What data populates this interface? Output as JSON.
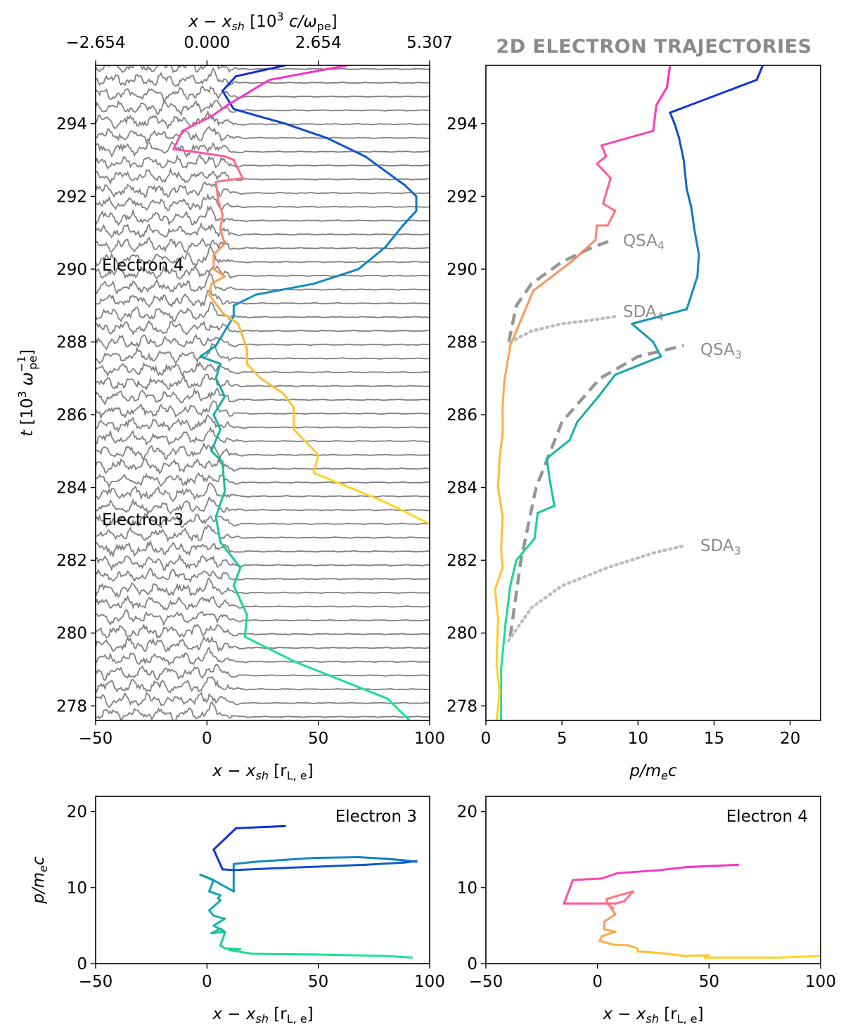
{
  "title": "2D ELECTRON TRAJECTORIES",
  "chart_data": [
    {
      "type": "line",
      "panel": "top-left",
      "xlabel": "x − x_sh [r_L,e]",
      "xlabel_main": "x − x",
      "xlabel_sub": "sh",
      "xlabel_unit_open": "[r",
      "xlabel_unit_sub": "L, e",
      "xlabel_unit_close": "]",
      "ylabel": "t [10^3 ω_pe^-1]",
      "top_xlabel": "x − x_sh [10^3 c/ω_pe]",
      "top_xticks": [
        "−2.654",
        "0.000",
        "2.654",
        "5.307"
      ],
      "top_xtick_values": [
        -50,
        0,
        50,
        100
      ],
      "xlim": [
        -50,
        100
      ],
      "ylim": [
        277.6,
        295.6
      ],
      "xticks": [
        -50,
        0,
        50,
        100
      ],
      "xtick_labels": [
        "−50",
        "0",
        "50",
        "100"
      ],
      "yticks": [
        278,
        280,
        282,
        284,
        286,
        288,
        290,
        292,
        294
      ],
      "annotations": [
        "Electron 4",
        "Electron 3"
      ],
      "background": "stacked field profiles (gray)",
      "series": [
        {
          "points": [
            [
              91,
              277.6
            ],
            [
              81,
              278.2
            ],
            [
              40,
              279.2
            ],
            [
              17,
              279.9
            ],
            [
              18,
              280.5
            ],
            [
              15,
              280.9
            ],
            [
              12,
              281.3
            ],
            [
              15,
              281.8
            ],
            [
              6,
              282.5
            ],
            [
              4,
              283.2
            ],
            [
              8,
              283.9
            ],
            [
              7,
              284.7
            ],
            [
              2,
              285.0
            ],
            [
              6,
              285.6
            ],
            [
              3,
              286.0
            ],
            [
              8,
              286.5
            ],
            [
              4,
              287.0
            ],
            [
              6,
              287.4
            ],
            [
              -3,
              287.6
            ],
            [
              4,
              287.9
            ],
            [
              12,
              288.7
            ],
            [
              12,
              289.0
            ],
            [
              22,
              289.3
            ],
            [
              48,
              289.6
            ],
            [
              68,
              290.0
            ],
            [
              80,
              290.6
            ],
            [
              88,
              291.2
            ],
            [
              94,
              291.6
            ],
            [
              94,
              292.0
            ],
            [
              89,
              292.3
            ],
            [
              71,
              293.1
            ],
            [
              54,
              293.6
            ],
            [
              35,
              294.0
            ],
            [
              12,
              294.4
            ],
            [
              7,
              294.9
            ],
            [
              13,
              295.3
            ],
            [
              35,
              295.6
            ]
          ]
        },
        {
          "points": [
            [
              100,
              283.0
            ],
            [
              80,
              283.6
            ],
            [
              48,
              284.4
            ],
            [
              50,
              284.9
            ],
            [
              39,
              285.6
            ],
            [
              39,
              286.2
            ],
            [
              34,
              286.6
            ],
            [
              24,
              287.0
            ],
            [
              18,
              287.4
            ],
            [
              18,
              287.8
            ],
            [
              14,
              288.5
            ],
            [
              7,
              288.8
            ],
            [
              1,
              289.3
            ],
            [
              2,
              289.6
            ],
            [
              8,
              289.8
            ],
            [
              3,
              290.0
            ],
            [
              3,
              290.4
            ],
            [
              8,
              290.7
            ],
            [
              6,
              291.1
            ],
            [
              7,
              291.5
            ],
            [
              5,
              291.9
            ],
            [
              4,
              292.4
            ],
            [
              16,
              292.5
            ],
            [
              12,
              293.0
            ],
            [
              8,
              293.1
            ],
            [
              -3,
              293.2
            ],
            [
              -15,
              293.3
            ],
            [
              -11,
              293.8
            ],
            [
              2,
              294.2
            ],
            [
              9,
              294.5
            ],
            [
              28,
              295.2
            ],
            [
              63,
              295.6
            ]
          ]
        }
      ]
    },
    {
      "type": "line",
      "panel": "top-right",
      "xlabel": "p/m_e c",
      "xlim": [
        0,
        22
      ],
      "xticks": [
        0,
        5,
        10,
        15,
        20
      ],
      "ylim": [
        277.6,
        295.6
      ],
      "yticks": [
        278,
        280,
        282,
        284,
        286,
        288,
        290,
        292,
        294
      ],
      "annotations": [
        "QSA₄",
        "SDA₄",
        "QSA₃",
        "SDA₃"
      ],
      "annotation_main": [
        "QSA",
        "SDA",
        "QSA",
        "SDA"
      ],
      "annotation_sub": [
        "4",
        "4",
        "3",
        "3"
      ],
      "series": [
        {
          "points": [
            [
              1.0,
              277.6
            ],
            [
              1.0,
              279.0
            ],
            [
              1.3,
              280.3
            ],
            [
              1.6,
              281.3
            ],
            [
              2.0,
              282.0
            ],
            [
              3.2,
              282.6
            ],
            [
              3.4,
              283.3
            ],
            [
              4.5,
              283.5
            ],
            [
              4.2,
              284.2
            ],
            [
              4.0,
              284.8
            ],
            [
              5.5,
              285.3
            ],
            [
              6.0,
              285.8
            ],
            [
              7.4,
              286.5
            ],
            [
              8.5,
              287.1
            ],
            [
              11.5,
              287.6
            ],
            [
              11.0,
              288.0
            ],
            [
              9.6,
              288.5
            ],
            [
              13.2,
              288.9
            ],
            [
              13.9,
              289.8
            ],
            [
              14.0,
              290.4
            ],
            [
              13.7,
              291.1
            ],
            [
              13.5,
              291.7
            ],
            [
              13.2,
              292.2
            ],
            [
              13.0,
              293.0
            ],
            [
              12.7,
              293.6
            ],
            [
              12.4,
              294.0
            ],
            [
              12.1,
              294.3
            ],
            [
              17.8,
              295.2
            ],
            [
              18.2,
              295.6
            ]
          ]
        },
        {
          "points": [
            [
              0.7,
              277.6
            ],
            [
              0.9,
              278.4
            ],
            [
              0.7,
              279.1
            ],
            [
              0.8,
              280.4
            ],
            [
              0.6,
              281.2
            ],
            [
              1.1,
              281.8
            ],
            [
              1.0,
              282.3
            ],
            [
              1.1,
              283.2
            ],
            [
              0.8,
              284.0
            ],
            [
              0.9,
              284.8
            ],
            [
              1.1,
              285.5
            ],
            [
              1.1,
              286.2
            ],
            [
              1.2,
              286.9
            ],
            [
              1.6,
              287.9
            ],
            [
              2.4,
              288.7
            ],
            [
              3.1,
              289.4
            ],
            [
              5.6,
              290.2
            ],
            [
              7.2,
              290.8
            ],
            [
              7.3,
              291.2
            ],
            [
              8.0,
              291.2
            ],
            [
              8.5,
              291.6
            ],
            [
              7.7,
              291.8
            ],
            [
              8.2,
              292.5
            ],
            [
              7.3,
              292.9
            ],
            [
              7.9,
              293.1
            ],
            [
              7.6,
              293.4
            ],
            [
              11.0,
              293.8
            ],
            [
              11.2,
              294.5
            ],
            [
              11.9,
              295.0
            ],
            [
              12.1,
              295.6
            ]
          ]
        }
      ],
      "model_curves": [
        {
          "label": "QSA₄",
          "style": "dashed",
          "points": [
            [
              1.5,
              288.0
            ],
            [
              2.0,
              289.0
            ],
            [
              3.0,
              289.6
            ],
            [
              5.0,
              290.2
            ],
            [
              7.0,
              290.6
            ],
            [
              8.3,
              290.8
            ]
          ]
        },
        {
          "label": "SDA₄",
          "style": "dotted",
          "points": [
            [
              1.6,
              288.0
            ],
            [
              3.0,
              288.3
            ],
            [
              5.0,
              288.5
            ],
            [
              7.0,
              288.6
            ],
            [
              8.5,
              288.7
            ]
          ]
        },
        {
          "label": "QSA₃",
          "style": "dashed",
          "points": [
            [
              1.6,
              279.9
            ],
            [
              2.3,
              282.0
            ],
            [
              3.3,
              284.0
            ],
            [
              5.0,
              285.8
            ],
            [
              7.5,
              287.0
            ],
            [
              10.0,
              287.6
            ],
            [
              13.0,
              287.9
            ]
          ]
        },
        {
          "label": "SDA₃",
          "style": "dotted",
          "points": [
            [
              1.5,
              279.8
            ],
            [
              3.0,
              280.7
            ],
            [
              5.0,
              281.3
            ],
            [
              8.0,
              281.8
            ],
            [
              11.0,
              282.2
            ],
            [
              13.0,
              282.4
            ]
          ]
        }
      ]
    },
    {
      "type": "line",
      "panel": "bottom-left",
      "title": "Electron 3",
      "xlabel": "x − x_sh [r_L,e]",
      "ylabel": "p/m_e c",
      "xlim": [
        -50,
        100
      ],
      "ylim": [
        0,
        22
      ],
      "xticks": [
        -50,
        0,
        50,
        100
      ],
      "xtick_labels": [
        "−50",
        "0",
        "50",
        "100"
      ],
      "yticks": [
        0,
        10,
        20
      ],
      "series": [
        {
          "points": [
            [
              92,
              0.8
            ],
            [
              81,
              1.0
            ],
            [
              50,
              1.2
            ],
            [
              20,
              1.3
            ],
            [
              14,
              1.6
            ],
            [
              10,
              1.8
            ],
            [
              15,
              1.9
            ],
            [
              8,
              2.0
            ],
            [
              6,
              2.4
            ],
            [
              8,
              4.0
            ],
            [
              7,
              4.4
            ],
            [
              6,
              4.6
            ],
            [
              2,
              4.0
            ],
            [
              8,
              4.2
            ],
            [
              3,
              5.0
            ],
            [
              8,
              5.9
            ],
            [
              3,
              6.3
            ],
            [
              1,
              7.0
            ],
            [
              6,
              8.3
            ],
            [
              5,
              8.6
            ],
            [
              6,
              9.0
            ],
            [
              1,
              9.5
            ],
            [
              3,
              11.0
            ],
            [
              -3,
              11.7
            ],
            [
              4,
              10.8
            ],
            [
              12,
              9.5
            ],
            [
              12,
              11.0
            ],
            [
              12,
              13.1
            ],
            [
              22,
              13.4
            ],
            [
              48,
              13.9
            ],
            [
              68,
              14.0
            ],
            [
              80,
              13.8
            ],
            [
              88,
              13.6
            ],
            [
              94,
              13.4
            ],
            [
              94,
              13.5
            ],
            [
              89,
              13.3
            ],
            [
              71,
              13.0
            ],
            [
              54,
              12.8
            ],
            [
              35,
              12.6
            ],
            [
              12,
              12.3
            ],
            [
              7,
              12.4
            ],
            [
              3,
              15.0
            ],
            [
              13,
              17.8
            ],
            [
              35,
              18.1
            ]
          ]
        }
      ]
    },
    {
      "type": "line",
      "panel": "bottom-right",
      "title": "Electron 4",
      "xlabel": "x − x_sh [r_L,e]",
      "xlim": [
        -50,
        100
      ],
      "ylim": [
        0,
        22
      ],
      "xticks": [
        -50,
        0,
        50,
        100
      ],
      "xtick_labels": [
        "−50",
        "0",
        "50",
        "100"
      ],
      "yticks": [
        0,
        10,
        20
      ],
      "series": [
        {
          "points": [
            [
              100,
              1.0
            ],
            [
              80,
              0.8
            ],
            [
              48,
              0.8
            ],
            [
              50,
              1.1
            ],
            [
              39,
              1.0
            ],
            [
              34,
              1.2
            ],
            [
              24,
              1.5
            ],
            [
              18,
              1.6
            ],
            [
              18,
              2.0
            ],
            [
              14,
              2.4
            ],
            [
              7,
              2.5
            ],
            [
              1,
              3.0
            ],
            [
              2,
              3.6
            ],
            [
              8,
              4.2
            ],
            [
              3,
              4.5
            ],
            [
              3,
              5.5
            ],
            [
              8,
              6.5
            ],
            [
              6,
              7.3
            ],
            [
              7,
              7.3
            ],
            [
              5,
              7.7
            ],
            [
              4,
              8.5
            ],
            [
              16,
              9.5
            ],
            [
              12,
              8.2
            ],
            [
              8,
              7.9
            ],
            [
              -3,
              7.9
            ],
            [
              -15,
              7.9
            ],
            [
              -11,
              11.0
            ],
            [
              2,
              11.2
            ],
            [
              9,
              11.9
            ],
            [
              28,
              12.3
            ],
            [
              40,
              12.7
            ],
            [
              63,
              13.0
            ]
          ]
        }
      ]
    }
  ]
}
